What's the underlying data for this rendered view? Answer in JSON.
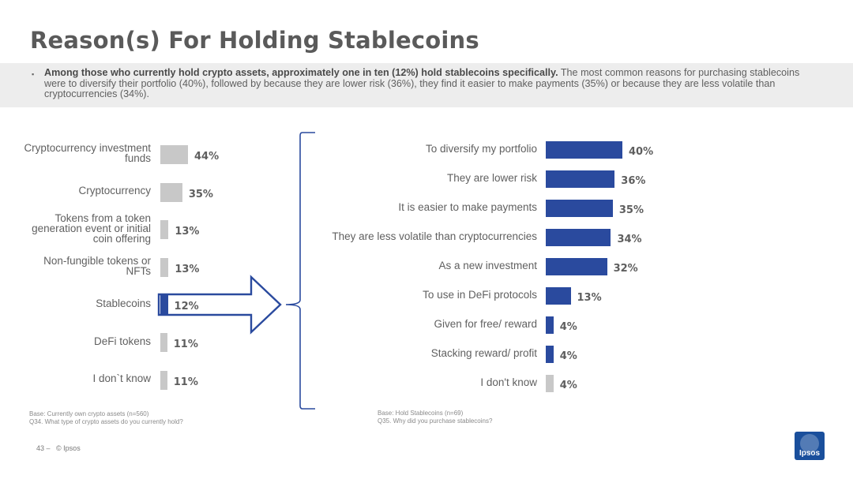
{
  "title": "Reason(s) For Holding Stablecoins",
  "summary": {
    "bullet": "▪",
    "bold": "Among those who currently hold crypto assets, approximately one in ten (12%) hold stablecoins specifically.",
    "rest": " The most common reasons for purchasing stablecoins were to diversify their portfolio (40%), followed by because they are lower risk (36%), they find it easier to make payments (35%) or because they are less volatile than cryptocurrencies (34%)."
  },
  "colors": {
    "blue": "#2a4a9e",
    "grey": "#c8c8c8",
    "highlight_outline": "#2a4a9e"
  },
  "chart_data": [
    {
      "type": "bar",
      "orientation": "horizontal",
      "categories": [
        "Cryptocurrency investment funds",
        "Cryptocurrency",
        "Tokens from a token generation event or initial coin offering",
        "Non-fungible tokens or NFTs",
        "Stablecoins",
        "DeFi tokens",
        "I don`t know"
      ],
      "values": [
        44,
        35,
        13,
        13,
        12,
        11,
        11
      ],
      "value_labels": [
        "44%",
        "35%",
        "13%",
        "13%",
        "12%",
        "11%",
        "11%"
      ],
      "bar_colors": [
        "#c8c8c8",
        "#c8c8c8",
        "#c8c8c8",
        "#c8c8c8",
        "#2a4a9e",
        "#c8c8c8",
        "#c8c8c8"
      ],
      "xlim": [
        0,
        100
      ],
      "base": "Base: Currently own crypto assets (n=560)",
      "question": "Q34. What type of crypto assets do you currently hold?"
    },
    {
      "type": "bar",
      "orientation": "horizontal",
      "categories": [
        "To diversify my portfolio",
        "They are lower risk",
        "It is easier to make payments",
        "They are less volatile than cryptocurrencies",
        "As a new investment",
        "To use in DeFi protocols",
        "Given for free/ reward",
        "Stacking reward/ profit",
        "I don't know"
      ],
      "values": [
        40,
        36,
        35,
        34,
        32,
        13,
        4,
        4,
        4
      ],
      "value_labels": [
        "40%",
        "36%",
        "35%",
        "34%",
        "32%",
        "13%",
        "4%",
        "4%",
        "4%"
      ],
      "bar_colors": [
        "#2a4a9e",
        "#2a4a9e",
        "#2a4a9e",
        "#2a4a9e",
        "#2a4a9e",
        "#2a4a9e",
        "#2a4a9e",
        "#2a4a9e",
        "#c8c8c8"
      ],
      "xlim": [
        0,
        100
      ],
      "base": "Base: Hold Stablecoins (n=69)",
      "question": "Q35. Why did you purchase stablecoins?"
    }
  ],
  "footer": {
    "page": "43 –",
    "copyright": "© Ipsos"
  },
  "logo": {
    "text": "Ipsos"
  }
}
